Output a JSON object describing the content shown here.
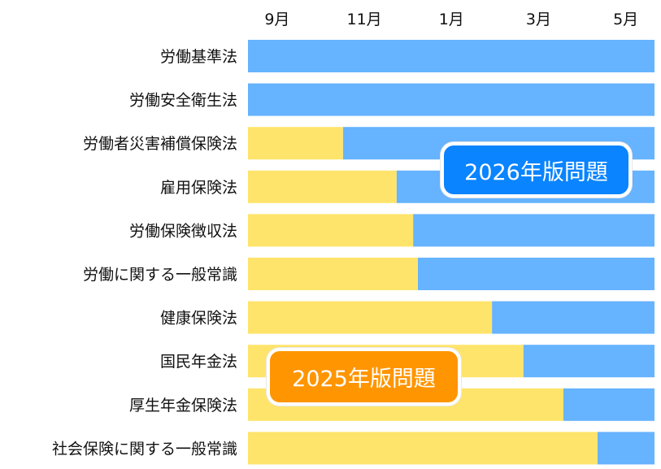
{
  "chart_data": {
    "type": "bar",
    "stacked": true,
    "orientation": "horizontal",
    "title": "",
    "xlabel": "",
    "ylabel": "",
    "x_unit": "months after 9月",
    "xlim": [
      -0.67,
      8.66
    ],
    "x_ticks": [
      {
        "value": 0,
        "label": "9月"
      },
      {
        "value": 2,
        "label": "11月"
      },
      {
        "value": 4,
        "label": "1月"
      },
      {
        "value": 6,
        "label": "3月"
      },
      {
        "value": 8,
        "label": "5月"
      }
    ],
    "categories": [
      "労働基準法",
      "労働安全衛生法",
      "労働者災害補償保険法",
      "雇用保険法",
      "労働保険徴収法",
      "労働に関する一般常識",
      "健康保険法",
      "国民年金法",
      "厚生年金保険法",
      "社会保険に関する一般常識"
    ],
    "series": [
      {
        "name": "2025年版問題",
        "color": "#FFE46B",
        "switch_point": [
          -0.67,
          -0.67,
          1.51,
          2.74,
          3.12,
          3.23,
          4.93,
          5.65,
          6.57,
          7.35
        ]
      },
      {
        "name": "2026年版問題",
        "color": "#66B3FF"
      }
    ],
    "legend": [
      {
        "label": "2026年版問題",
        "color": "#0A84FF"
      },
      {
        "label": "2025年版問題",
        "color": "#FF9500"
      }
    ],
    "grid": false
  }
}
